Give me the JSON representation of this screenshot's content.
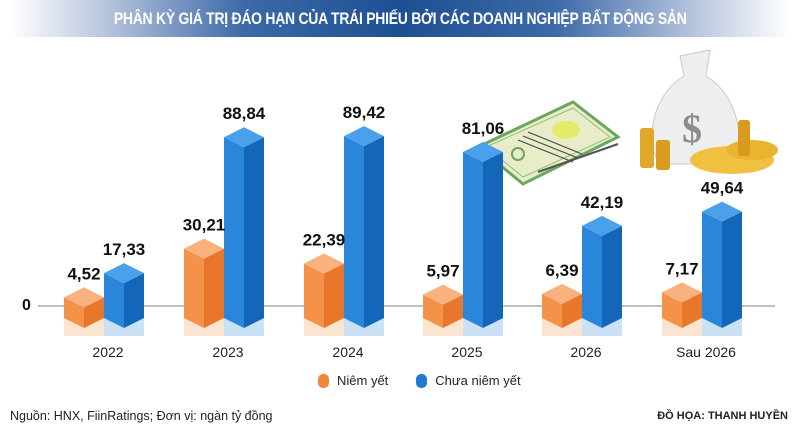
{
  "title": "PHÂN KỲ GIÁ TRỊ ĐÁO HẠN CỦA TRÁI PHIẾU BỞI CÁC DOANH NGHIỆP BẤT ĐỘNG SẢN",
  "zero_label": "0",
  "legend": [
    {
      "label": "Niêm yết",
      "color": "#f0883a"
    },
    {
      "label": "Chưa niêm yết",
      "color": "#1f7ad0"
    }
  ],
  "footer": {
    "source": "Nguồn: HNX, FiinRatings; Đơn vị: ngàn tỷ đồng",
    "credit": "ĐỒ HỌA: THANH HUYỀN"
  },
  "colors": {
    "orange_front": "#f4924a",
    "orange_side": "#e8772c",
    "orange_top": "#f9b27e",
    "blue_front": "#2a86db",
    "blue_side": "#1366b8",
    "blue_top": "#4aa0ea",
    "axis": "#9a9a9a"
  },
  "chart_data": {
    "type": "bar",
    "title": "PHÂN KỲ GIÁ TRỊ ĐÁO HẠN CỦA TRÁI PHIẾU BỞI CÁC DOANH NGHIỆP BẤT ĐỘNG SẢN",
    "xlabel": "",
    "ylabel": "ngàn tỷ đồng",
    "categories": [
      "2022",
      "2023",
      "2024",
      "2025",
      "2026",
      "Sau 2026"
    ],
    "series": [
      {
        "name": "Niêm yết",
        "values": [
          4.52,
          30.21,
          22.39,
          5.97,
          6.39,
          7.17
        ],
        "labels": [
          "4,52",
          "30,21",
          "22,39",
          "5,97",
          "6,39",
          "7,17"
        ]
      },
      {
        "name": "Chưa niêm yết",
        "values": [
          17.33,
          88.84,
          89.42,
          81.06,
          42.19,
          49.64
        ],
        "labels": [
          "17,33",
          "88,84",
          "89,42",
          "81,06",
          "42,19",
          "49,64"
        ]
      }
    ],
    "ylim": [
      0,
      90
    ],
    "grid": false,
    "legend_position": "bottom",
    "style": "3d-isometric-bars"
  }
}
